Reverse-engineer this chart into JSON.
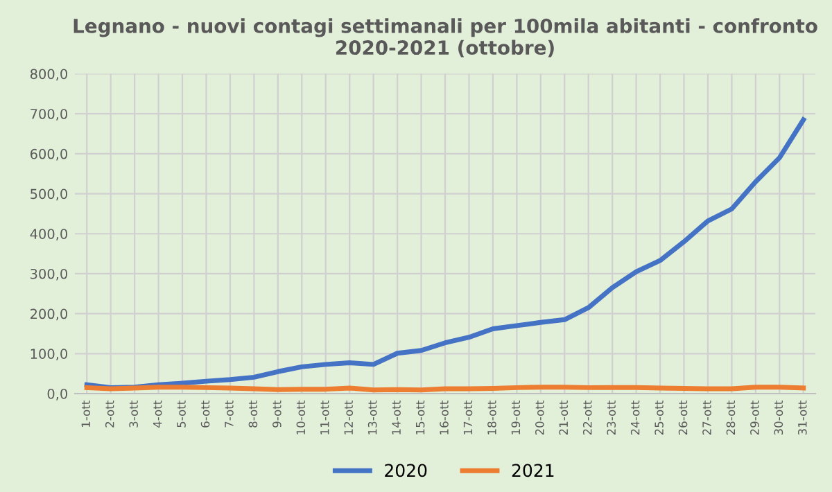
{
  "chart_data": {
    "type": "line",
    "title": "Legnano - nuovi contagi settimanali per 100mila abitanti - confronto\n2020-2021 (ottobre)",
    "categories": [
      "1-ott",
      "2-ott",
      "3-ott",
      "4-ott",
      "5-ott",
      "6-ott",
      "7-ott",
      "8-ott",
      "9-ott",
      "10-ott",
      "11-ott",
      "12-ott",
      "13-ott",
      "14-ott",
      "15-ott",
      "16-ott",
      "17-ott",
      "18-ott",
      "19-ott",
      "20-ott",
      "21-ott",
      "22-ott",
      "23-ott",
      "24-ott",
      "25-ott",
      "26-ott",
      "27-ott",
      "28-ott",
      "29-ott",
      "30-ott",
      "31-ott"
    ],
    "series": [
      {
        "name": "2020",
        "color": "#4472c4",
        "values": [
          22,
          15,
          16,
          22,
          26,
          31,
          35,
          41,
          55,
          67,
          73,
          77,
          73,
          101,
          108,
          127,
          141,
          162,
          170,
          178,
          185,
          215,
          265,
          305,
          333,
          380,
          432,
          462,
          530,
          590,
          685
        ]
      },
      {
        "name": "2021",
        "color": "#ed7d31",
        "values": [
          15,
          12,
          14,
          16,
          16,
          15,
          14,
          12,
          10,
          11,
          11,
          14,
          9,
          10,
          9,
          12,
          12,
          13,
          15,
          16,
          16,
          15,
          15,
          15,
          14,
          13,
          12,
          12,
          16,
          16,
          14
        ]
      }
    ],
    "ylim": [
      0,
      800
    ],
    "yticks": [
      {
        "value": 0,
        "label": "0,0"
      },
      {
        "value": 100,
        "label": "100,0"
      },
      {
        "value": 200,
        "label": "200,0"
      },
      {
        "value": 300,
        "label": "300,0"
      },
      {
        "value": 400,
        "label": "400,0"
      },
      {
        "value": 500,
        "label": "500,0"
      },
      {
        "value": 600,
        "label": "600,0"
      },
      {
        "value": 700,
        "label": "700,0"
      },
      {
        "value": 800,
        "label": "800,0"
      }
    ],
    "grid": true,
    "legend": "bottom"
  }
}
